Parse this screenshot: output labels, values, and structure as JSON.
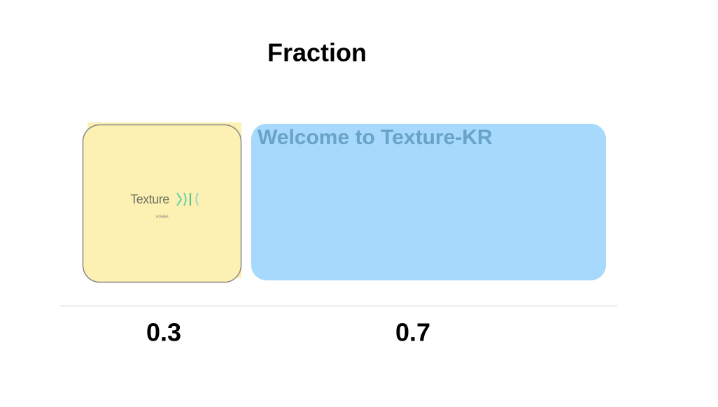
{
  "title": "Fraction",
  "left_panel": {
    "logo_text": "Texture",
    "logo_subtext": "KOREA",
    "fraction": "0.3"
  },
  "right_panel": {
    "text": "Welcome to Texture-KR",
    "fraction": "0.7"
  }
}
